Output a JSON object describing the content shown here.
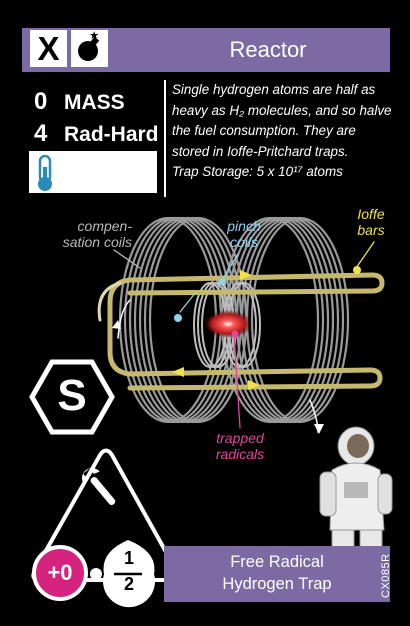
{
  "header": {
    "title": "Reactor",
    "type_icons": [
      "x-icon",
      "bomb-icon"
    ],
    "type_letter": "X"
  },
  "stats": {
    "mass_value": "0",
    "mass_label": "MASS",
    "radhard_value": "4",
    "radhard_label": "Rad-Hard",
    "thermo_icon": "thermometer-icon"
  },
  "description": {
    "line1": "Single hydrogen atoms are half as heavy as H₂ molecules, and so halve the fuel consumption. They are stored in Ioffe-Pritchard traps.",
    "line2": "Trap Storage: 5 x 10¹⁷ atoms"
  },
  "diagram": {
    "compensation_label": "compen-sation coils",
    "pinch_label": "pinch coils",
    "ioffe_label": "Ioffe bars",
    "trapped_label": "trapped radicals"
  },
  "supports": {
    "s_letter": "S",
    "tool_icon": "wrench-icon",
    "bonus": "+0",
    "fraction_num": "1",
    "fraction_den": "2"
  },
  "footer": {
    "name_line1": "Free Radical",
    "name_line2": "Hydrogen Trap",
    "card_id": "CX085R"
  },
  "colors": {
    "header_bg": "#7b6aa3",
    "bonus_magenta": "#d6237f",
    "ioffe_yellow": "#f2e04a",
    "pinch_blue": "#8fd2f0",
    "trapped_pink": "#e4449a"
  }
}
